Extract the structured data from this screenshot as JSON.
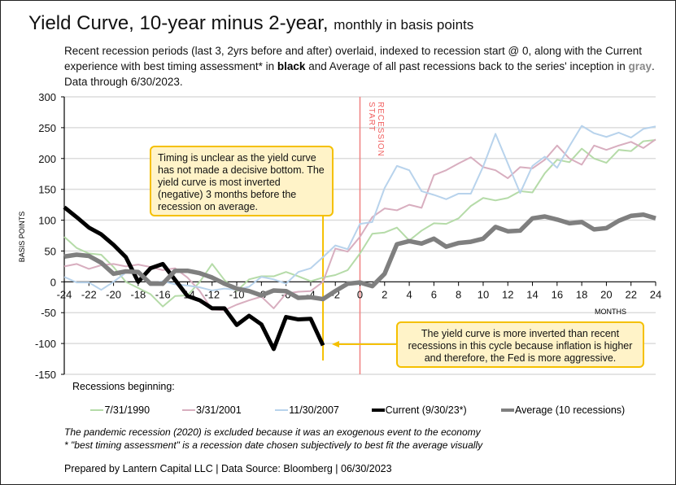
{
  "header": {
    "title": "Yield Curve, 10-year minus 2-year,",
    "title_suffix": "monthly in basis points",
    "description_1": "Recent recession periods (last 3, 2yrs before and after) overlaid, indexed to recession start @ 0, along with the Current experience with best timing assessment* in",
    "description_black": "black",
    "description_2": "and Average of all past recessions back to the series' inception in",
    "description_gray": "gray",
    "description_3": ". Data through 6/30/2023."
  },
  "annotations": {
    "timing_note": "Timing is unclear as the yield curve has not made a decisive bottom. The yield curve is most inverted (negative) 3 months before the recession on average.",
    "inversion_note": "The yield curve is more inverted than recent recessions in this cycle because inflation is higher and therefore, the Fed is more aggressive.",
    "recession_label_1": "RECESSION",
    "recession_label_2": "START"
  },
  "legend": {
    "heading": "Recessions beginning:"
  },
  "footer": {
    "note_1": "The pandemic recession (2020) is excluded because it was an exogenous event to the economy",
    "note_2": "* \"best timing assessment\" is a recession date chosen subjectively to best fit the average visually",
    "prepared": "Prepared by Lantern Capital LLC | Data Source: Bloomberg | 06/30/2023"
  },
  "chart_data": {
    "type": "line",
    "xlabel": "MONTHS",
    "ylabel": "BASIS POINTS",
    "xlim": [
      -24,
      24
    ],
    "ylim": [
      -150,
      300
    ],
    "xticks": [
      -24,
      -22,
      -20,
      -18,
      -16,
      -14,
      -12,
      -10,
      -8,
      -6,
      -4,
      -2,
      0,
      2,
      4,
      6,
      8,
      10,
      12,
      14,
      16,
      18,
      20,
      22,
      24
    ],
    "yticks": [
      -150,
      -100,
      -50,
      0,
      50,
      100,
      150,
      200,
      250,
      300
    ],
    "grid": "horizontal",
    "legend": "bottom",
    "recession_start_x": 0,
    "recession_color": "#f08080",
    "series": [
      {
        "name": "7/31/1990",
        "color": "#b5dba8",
        "width": 2,
        "x_start": -24,
        "values": [
          73,
          55,
          46,
          44,
          24,
          0,
          -10,
          -20,
          -40,
          -23,
          -22,
          0,
          29,
          3,
          -15,
          4,
          9,
          9,
          16,
          9,
          1,
          7,
          11,
          19,
          46,
          78,
          80,
          88,
          67,
          83,
          95,
          94,
          103,
          123,
          136,
          132,
          136,
          147,
          145,
          176,
          198,
          194,
          216,
          200,
          193,
          214,
          212,
          228,
          230
        ]
      },
      {
        "name": "3/31/2001",
        "color": "#d8aebf",
        "width": 2,
        "x_start": -24,
        "values": [
          25,
          29,
          21,
          27,
          29,
          25,
          28,
          24,
          19,
          22,
          7,
          -15,
          -45,
          -46,
          -37,
          -30,
          -24,
          -43,
          -19,
          -16,
          -15,
          0,
          54,
          49,
          73,
          105,
          119,
          116,
          125,
          120,
          173,
          181,
          192,
          202,
          186,
          181,
          168,
          186,
          184,
          198,
          221,
          200,
          190,
          221,
          214,
          221,
          227,
          217,
          231
        ]
      },
      {
        "name": "11/30/2007",
        "color": "#b8d3ec",
        "width": 2,
        "x_start": -24,
        "values": [
          8,
          -1,
          -1,
          -13,
          0,
          15,
          16,
          -4,
          1,
          -4,
          -6,
          -9,
          -14,
          -11,
          -13,
          -8,
          8,
          4,
          -3,
          16,
          22,
          40,
          59,
          53,
          94,
          97,
          152,
          188,
          181,
          147,
          141,
          134,
          143,
          143,
          187,
          240,
          192,
          144,
          188,
          203,
          185,
          220,
          253,
          241,
          235,
          242,
          234,
          248,
          252
        ]
      },
      {
        "name": "Current (9/30/23*)",
        "color": "#000000",
        "width": 5,
        "x_start": -24,
        "values": [
          121,
          105,
          88,
          77,
          60,
          40,
          0,
          22,
          29,
          3,
          -23,
          -30,
          -43,
          -43,
          -70,
          -55,
          -69,
          -109,
          -57,
          -61,
          -60,
          -103
        ]
      },
      {
        "name": "Average (10 recessions)",
        "color": "#7f7f7f",
        "width": 5.5,
        "x_start": -24,
        "values": [
          41,
          44,
          42,
          31,
          13,
          17,
          16,
          -3,
          -3,
          18,
          18,
          14,
          7,
          -3,
          -11,
          -15,
          -22,
          -14,
          -15,
          -26,
          -25,
          -28,
          -15,
          -3,
          -1,
          -7,
          13,
          61,
          66,
          62,
          70,
          57,
          63,
          65,
          70,
          89,
          82,
          83,
          103,
          106,
          101,
          95,
          97,
          85,
          87,
          99,
          107,
          109,
          103
        ]
      }
    ]
  }
}
